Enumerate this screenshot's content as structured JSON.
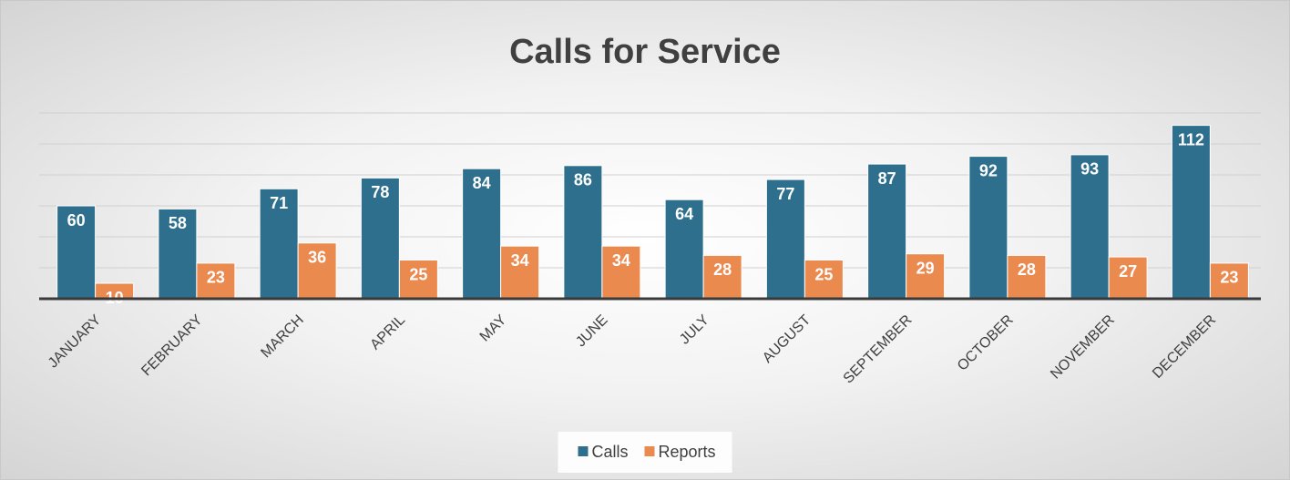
{
  "chart_data": {
    "type": "bar",
    "title": "Calls for Service",
    "categories": [
      "JANUARY",
      "FEBRUARY",
      "MARCH",
      "APRIL",
      "MAY",
      "JUNE",
      "JULY",
      "AUGUST",
      "SEPTEMBER",
      "OCTOBER",
      "NOVEMBER",
      "DECEMBER"
    ],
    "series": [
      {
        "name": "Calls",
        "color": "#2e6f8e",
        "values": [
          60,
          58,
          71,
          78,
          84,
          86,
          64,
          77,
          87,
          92,
          93,
          112
        ]
      },
      {
        "name": "Reports",
        "color": "#ea8a4f",
        "values": [
          10,
          23,
          36,
          25,
          34,
          34,
          28,
          25,
          29,
          28,
          27,
          23
        ]
      }
    ],
    "ylim": [
      0,
      120
    ],
    "yticks": [
      0,
      20,
      40,
      60,
      80,
      100,
      120
    ],
    "grid": true,
    "legend": "bottom"
  }
}
